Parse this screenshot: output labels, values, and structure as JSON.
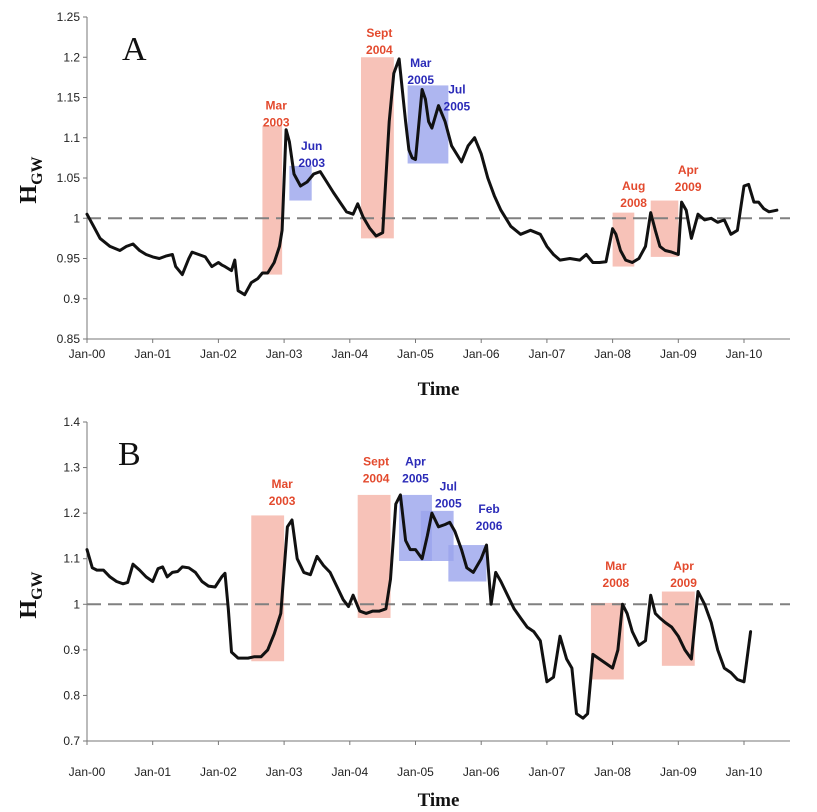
{
  "chart_data": [
    {
      "type": "line",
      "panel_label": "A",
      "ylabel_main": "H",
      "ylabel_sub": "GW",
      "xlabel": "Time",
      "xlim": [
        0,
        10.7
      ],
      "ylim": [
        0.85,
        1.25
      ],
      "yticks": [
        0.85,
        0.9,
        0.95,
        1,
        1.05,
        1.1,
        1.15,
        1.2,
        1.25
      ],
      "ytick_labels": [
        "0.85",
        "0.9",
        "0.95",
        "1",
        "1.05",
        "1.1",
        "1.15",
        "1.2",
        "1.25"
      ],
      "xtick_labels": [
        "Jan-00",
        "Jan-01",
        "Jan-02",
        "Jan-03",
        "Jan-04",
        "Jan-05",
        "Jan-06",
        "Jan-07",
        "Jan-08",
        "Jan-09",
        "Jan-10"
      ],
      "reference_line": 1,
      "colors": {
        "line": "#111111",
        "refline": "#808080",
        "red_box": "#f6b7ab",
        "blue_box": "#9aa4ec",
        "red_text": "#e34a2e",
        "blue_text": "#2b2bb8"
      },
      "highlights": [
        {
          "x0": 2.67,
          "x1": 2.97,
          "y0": 0.93,
          "y1": 1.115,
          "color": "red"
        },
        {
          "x0": 3.08,
          "x1": 3.42,
          "y0": 1.022,
          "y1": 1.065,
          "color": "blue"
        },
        {
          "x0": 4.17,
          "x1": 4.67,
          "y0": 0.975,
          "y1": 1.2,
          "color": "red"
        },
        {
          "x0": 4.88,
          "x1": 5.5,
          "y0": 1.068,
          "y1": 1.165,
          "color": "blue"
        },
        {
          "x0": 8.0,
          "x1": 8.33,
          "y0": 0.94,
          "y1": 1.007,
          "color": "red"
        },
        {
          "x0": 8.58,
          "x1": 9.0,
          "y0": 0.952,
          "y1": 1.022,
          "color": "red"
        }
      ],
      "annotations": [
        {
          "lines": [
            "Mar",
            "2003"
          ],
          "x": 2.88,
          "y": 1.135,
          "color": "red"
        },
        {
          "lines": [
            "Jun",
            "2003"
          ],
          "x": 3.42,
          "y": 1.085,
          "color": "blue"
        },
        {
          "lines": [
            "Sept",
            "2004"
          ],
          "x": 4.45,
          "y": 1.225,
          "color": "red"
        },
        {
          "lines": [
            "Mar",
            "2005"
          ],
          "x": 5.08,
          "y": 1.188,
          "color": "blue"
        },
        {
          "lines": [
            "Jul",
            "2005"
          ],
          "x": 5.63,
          "y": 1.155,
          "color": "blue"
        },
        {
          "lines": [
            "Aug",
            "2008"
          ],
          "x": 8.32,
          "y": 1.035,
          "color": "red"
        },
        {
          "lines": [
            "Apr",
            "2009"
          ],
          "x": 9.15,
          "y": 1.055,
          "color": "red"
        }
      ],
      "x": [
        0,
        0.1,
        0.2,
        0.35,
        0.5,
        0.6,
        0.7,
        0.8,
        0.9,
        1,
        1.1,
        1.2,
        1.3,
        1.35,
        1.45,
        1.55,
        1.6,
        1.7,
        1.8,
        1.9,
        2,
        2.05,
        2.1,
        2.2,
        2.25,
        2.3,
        2.4,
        2.5,
        2.6,
        2.67,
        2.75,
        2.85,
        2.93,
        2.97,
        3.03,
        3.08,
        3.15,
        3.25,
        3.35,
        3.45,
        3.55,
        3.65,
        3.75,
        3.85,
        3.95,
        4.05,
        4.12,
        4.2,
        4.3,
        4.4,
        4.5,
        4.6,
        4.67,
        4.75,
        4.85,
        4.9,
        4.95,
        5.0,
        5.1,
        5.15,
        5.2,
        5.25,
        5.35,
        5.45,
        5.55,
        5.7,
        5.8,
        5.9,
        6.0,
        6.1,
        6.2,
        6.3,
        6.45,
        6.6,
        6.75,
        6.9,
        7.0,
        7.1,
        7.2,
        7.35,
        7.5,
        7.6,
        7.7,
        7.8,
        7.9,
        8.0,
        8.05,
        8.12,
        8.2,
        8.3,
        8.4,
        8.5,
        8.58,
        8.65,
        8.72,
        8.8,
        8.9,
        9.0,
        9.05,
        9.12,
        9.2,
        9.3,
        9.4,
        9.5,
        9.6,
        9.7,
        9.8,
        9.9,
        10.0,
        10.07,
        10.15,
        10.22,
        10.3,
        10.38,
        10.5
      ],
      "y": [
        1.005,
        0.99,
        0.975,
        0.965,
        0.96,
        0.965,
        0.968,
        0.96,
        0.955,
        0.952,
        0.95,
        0.953,
        0.955,
        0.94,
        0.93,
        0.95,
        0.958,
        0.955,
        0.952,
        0.94,
        0.945,
        0.942,
        0.94,
        0.935,
        0.948,
        0.91,
        0.905,
        0.92,
        0.925,
        0.932,
        0.932,
        0.945,
        0.965,
        0.985,
        1.11,
        1.095,
        1.055,
        1.04,
        1.045,
        1.055,
        1.058,
        1.045,
        1.032,
        1.02,
        1.008,
        1.005,
        1.018,
        1.002,
        0.988,
        0.978,
        0.982,
        1.12,
        1.18,
        1.198,
        1.12,
        1.085,
        1.075,
        1.073,
        1.16,
        1.148,
        1.12,
        1.112,
        1.14,
        1.12,
        1.09,
        1.07,
        1.09,
        1.1,
        1.08,
        1.05,
        1.028,
        1.01,
        0.99,
        0.98,
        0.985,
        0.98,
        0.965,
        0.955,
        0.948,
        0.95,
        0.948,
        0.955,
        0.945,
        0.945,
        0.946,
        0.987,
        0.98,
        0.96,
        0.948,
        0.945,
        0.95,
        0.965,
        1.007,
        0.985,
        0.965,
        0.96,
        0.958,
        0.955,
        1.02,
        1.01,
        0.975,
        1.005,
        0.998,
        1.0,
        0.995,
        0.998,
        0.98,
        0.985,
        1.04,
        1.042,
        1.02,
        1.02,
        1.012,
        1.008,
        1.01
      ]
    },
    {
      "type": "line",
      "panel_label": "B",
      "ylabel_main": "H",
      "ylabel_sub": "GW",
      "xlabel": "Time",
      "xlim": [
        0,
        10.7
      ],
      "ylim": [
        0.7,
        1.4
      ],
      "yticks": [
        0.7,
        0.8,
        0.9,
        1,
        1.1,
        1.2,
        1.3,
        1.4
      ],
      "ytick_labels": [
        "0.7",
        "0.8",
        "0.9",
        "1",
        "1.1",
        "1.2",
        "1.3",
        "1.4"
      ],
      "xtick_labels": [
        "Jan-00",
        "Jan-01",
        "Jan-02",
        "Jan-03",
        "Jan-04",
        "Jan-05",
        "Jan-06",
        "Jan-07",
        "Jan-08",
        "Jan-09",
        "Jan-10"
      ],
      "reference_line": 1,
      "colors": {
        "line": "#111111",
        "refline": "#808080",
        "red_box": "#f6b7ab",
        "blue_box": "#9aa4ec",
        "red_text": "#e34a2e",
        "blue_text": "#2b2bb8"
      },
      "highlights": [
        {
          "x0": 2.5,
          "x1": 3.0,
          "y0": 0.875,
          "y1": 1.195,
          "color": "red"
        },
        {
          "x0": 4.12,
          "x1": 4.62,
          "y0": 0.97,
          "y1": 1.24,
          "color": "red"
        },
        {
          "x0": 4.75,
          "x1": 5.25,
          "y0": 1.095,
          "y1": 1.24,
          "color": "blue"
        },
        {
          "x0": 5.08,
          "x1": 5.58,
          "y0": 1.095,
          "y1": 1.205,
          "color": "blue"
        },
        {
          "x0": 5.5,
          "x1": 6.08,
          "y0": 1.05,
          "y1": 1.13,
          "color": "blue"
        },
        {
          "x0": 7.67,
          "x1": 8.17,
          "y0": 0.835,
          "y1": 1.003,
          "color": "red"
        },
        {
          "x0": 8.75,
          "x1": 9.25,
          "y0": 0.865,
          "y1": 1.028,
          "color": "red"
        }
      ],
      "annotations": [
        {
          "lines": [
            "Mar",
            "2003"
          ],
          "x": 2.97,
          "y": 1.255,
          "color": "red"
        },
        {
          "lines": [
            "Sept",
            "2004"
          ],
          "x": 4.4,
          "y": 1.305,
          "color": "red"
        },
        {
          "lines": [
            "Apr",
            "2005"
          ],
          "x": 5.0,
          "y": 1.305,
          "color": "blue"
        },
        {
          "lines": [
            "Jul",
            "2005"
          ],
          "x": 5.5,
          "y": 1.25,
          "color": "blue"
        },
        {
          "lines": [
            "Feb",
            "2006"
          ],
          "x": 6.12,
          "y": 1.2,
          "color": "blue"
        },
        {
          "lines": [
            "Mar",
            "2008"
          ],
          "x": 8.05,
          "y": 1.075,
          "color": "red"
        },
        {
          "lines": [
            "Apr",
            "2009"
          ],
          "x": 9.08,
          "y": 1.075,
          "color": "red"
        }
      ],
      "x": [
        0,
        0.08,
        0.15,
        0.25,
        0.35,
        0.45,
        0.55,
        0.62,
        0.7,
        0.8,
        0.9,
        1.0,
        1.08,
        1.15,
        1.22,
        1.3,
        1.38,
        1.45,
        1.55,
        1.65,
        1.75,
        1.85,
        1.95,
        2.05,
        2.1,
        2.15,
        2.2,
        2.3,
        2.45,
        2.55,
        2.65,
        2.75,
        2.85,
        2.95,
        3.05,
        3.12,
        3.2,
        3.3,
        3.4,
        3.5,
        3.6,
        3.7,
        3.8,
        3.9,
        3.98,
        4.05,
        4.15,
        4.25,
        4.35,
        4.45,
        4.55,
        4.62,
        4.7,
        4.77,
        4.85,
        4.92,
        5.0,
        5.1,
        5.18,
        5.25,
        5.35,
        5.45,
        5.52,
        5.6,
        5.7,
        5.78,
        5.88,
        6.0,
        6.08,
        6.15,
        6.22,
        6.3,
        6.4,
        6.5,
        6.6,
        6.7,
        6.8,
        6.9,
        7.0,
        7.1,
        7.2,
        7.3,
        7.38,
        7.45,
        7.55,
        7.62,
        7.7,
        7.8,
        7.9,
        8.0,
        8.08,
        8.15,
        8.22,
        8.3,
        8.4,
        8.5,
        8.58,
        8.65,
        8.72,
        8.8,
        8.9,
        9.0,
        9.1,
        9.2,
        9.3,
        9.4,
        9.5,
        9.6,
        9.7,
        9.8,
        9.9,
        10.0,
        10.1
      ],
      "y": [
        1.12,
        1.08,
        1.075,
        1.075,
        1.06,
        1.05,
        1.045,
        1.048,
        1.088,
        1.075,
        1.06,
        1.05,
        1.078,
        1.082,
        1.06,
        1.07,
        1.072,
        1.082,
        1.08,
        1.07,
        1.05,
        1.04,
        1.038,
        1.06,
        1.068,
        0.99,
        0.895,
        0.882,
        0.882,
        0.885,
        0.885,
        0.9,
        0.935,
        0.98,
        1.17,
        1.185,
        1.1,
        1.07,
        1.065,
        1.105,
        1.085,
        1.07,
        1.04,
        1.01,
        0.995,
        1.02,
        0.985,
        0.98,
        0.985,
        0.985,
        0.99,
        1.055,
        1.22,
        1.24,
        1.14,
        1.12,
        1.12,
        1.1,
        1.15,
        1.2,
        1.17,
        1.175,
        1.18,
        1.16,
        1.12,
        1.08,
        1.07,
        1.1,
        1.13,
        1.0,
        1.07,
        1.05,
        1.02,
        0.99,
        0.97,
        0.95,
        0.94,
        0.92,
        0.83,
        0.84,
        0.93,
        0.88,
        0.86,
        0.76,
        0.75,
        0.76,
        0.89,
        0.88,
        0.87,
        0.86,
        0.9,
        1.0,
        0.98,
        0.94,
        0.91,
        0.92,
        1.02,
        0.98,
        0.97,
        0.96,
        0.95,
        0.93,
        0.9,
        0.88,
        1.028,
        1.0,
        0.96,
        0.9,
        0.86,
        0.85,
        0.835,
        0.83,
        0.94
      ]
    }
  ]
}
